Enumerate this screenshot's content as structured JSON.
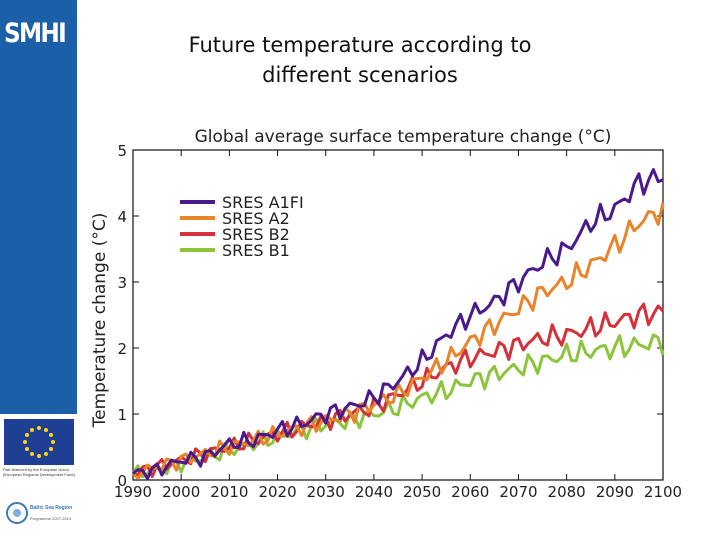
{
  "branding": {
    "logo_text": "SMHI",
    "eu_caption": "Part-financed by the European Union (European Regional Development Fund)",
    "bsr_name": "Baltic Sea Region",
    "bsr_programme": "Programme 2007-2013"
  },
  "slide": {
    "title_line1": "Future temperature according to",
    "title_line2": "different scenarios"
  },
  "colors": {
    "sidebar": "#1a5fa8",
    "A1FI": "#4a1a8c",
    "A2": "#e8842a",
    "B2": "#d6303a",
    "B1": "#8cc43c"
  },
  "chart_data": {
    "type": "line",
    "title": "Global average surface temperature change (°C)",
    "xlabel": "",
    "ylabel": "Temperature change (°C)",
    "xlim": [
      1990,
      2100
    ],
    "ylim": [
      0,
      5
    ],
    "xticks": [
      1990,
      2000,
      2010,
      2020,
      2030,
      2040,
      2050,
      2060,
      2070,
      2080,
      2090,
      2100
    ],
    "yticks": [
      0,
      1,
      2,
      3,
      4,
      5
    ],
    "legend_position": "top-left",
    "grid": false,
    "x": [
      1990,
      1995,
      2000,
      2005,
      2010,
      2015,
      2020,
      2025,
      2030,
      2035,
      2040,
      2045,
      2050,
      2055,
      2060,
      2065,
      2070,
      2075,
      2080,
      2085,
      2090,
      2095,
      2100
    ],
    "series": [
      {
        "name": "SRES A1FI",
        "values": [
          0.1,
          0.15,
          0.3,
          0.35,
          0.55,
          0.6,
          0.75,
          0.85,
          1.0,
          1.1,
          1.25,
          1.5,
          1.8,
          2.2,
          2.5,
          2.7,
          3.0,
          3.3,
          3.5,
          3.9,
          4.1,
          4.5,
          4.6
        ]
      },
      {
        "name": "SRES A2",
        "values": [
          0.1,
          0.2,
          0.3,
          0.4,
          0.5,
          0.6,
          0.7,
          0.8,
          0.9,
          1.0,
          1.15,
          1.3,
          1.55,
          1.8,
          2.1,
          2.35,
          2.6,
          2.85,
          3.0,
          3.25,
          3.55,
          3.9,
          4.1
        ]
      },
      {
        "name": "SRES B2",
        "values": [
          0.1,
          0.2,
          0.3,
          0.4,
          0.5,
          0.6,
          0.7,
          0.8,
          0.9,
          1.0,
          1.1,
          1.3,
          1.5,
          1.7,
          1.85,
          1.95,
          2.05,
          2.15,
          2.2,
          2.3,
          2.4,
          2.5,
          2.55
        ]
      },
      {
        "name": "SRES B1",
        "values": [
          0.1,
          0.15,
          0.25,
          0.35,
          0.45,
          0.55,
          0.65,
          0.75,
          0.85,
          0.9,
          1.0,
          1.1,
          1.25,
          1.35,
          1.5,
          1.6,
          1.7,
          1.8,
          1.9,
          1.95,
          2.0,
          2.05,
          2.1
        ]
      }
    ]
  }
}
